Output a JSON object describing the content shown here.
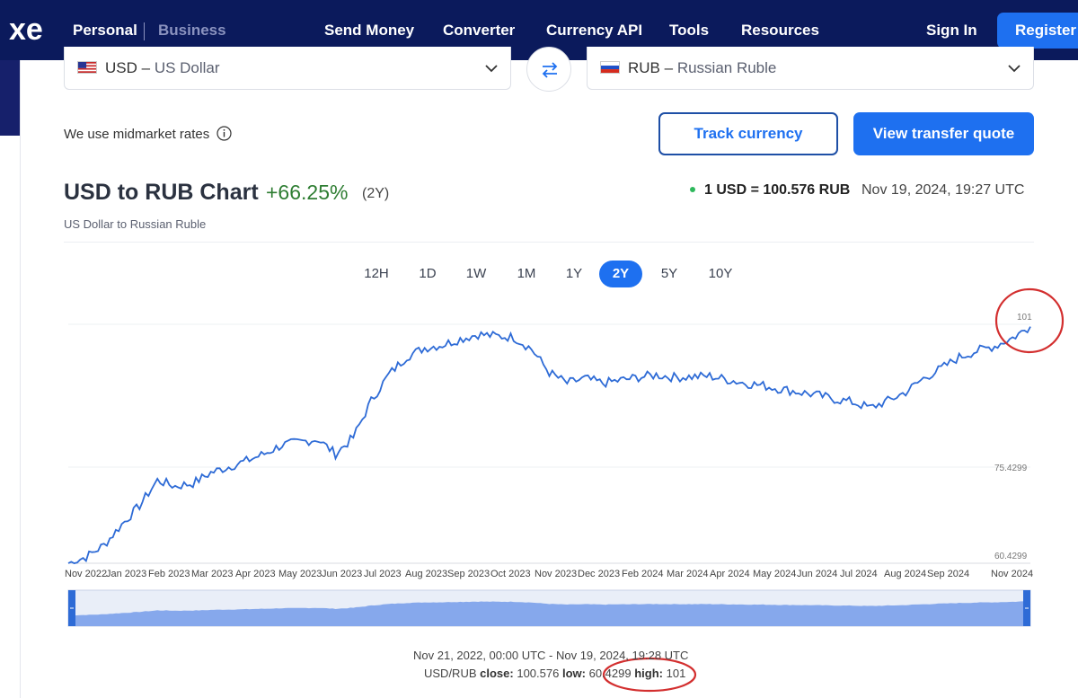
{
  "nav": {
    "personal": "Personal",
    "business": "Business",
    "links": [
      "Send Money",
      "Converter",
      "Currency API",
      "Tools",
      "Resources"
    ],
    "sign_in": "Sign In",
    "register": "Register"
  },
  "from_currency": {
    "code": "USD",
    "name": "US Dollar"
  },
  "to_currency": {
    "code": "RUB",
    "name": "Russian Ruble"
  },
  "midmarket_text": "We use midmarket rates",
  "track_button": "Track currency",
  "quote_button": "View transfer quote",
  "chart_header": {
    "title": "USD to RUB Chart",
    "change": "+66.25%",
    "period": "(2Y)",
    "subtitle": "US Dollar to Russian Ruble",
    "rate": "1 USD = 100.576 RUB",
    "timestamp": "Nov 19, 2024, 19:27 UTC"
  },
  "ranges": [
    {
      "label": "12H",
      "active": false
    },
    {
      "label": "1D",
      "active": false
    },
    {
      "label": "1W",
      "active": false
    },
    {
      "label": "1M",
      "active": false
    },
    {
      "label": "1Y",
      "active": false
    },
    {
      "label": "2Y",
      "active": true
    },
    {
      "label": "5Y",
      "active": false
    },
    {
      "label": "10Y",
      "active": false
    }
  ],
  "chart_data": {
    "type": "line",
    "title": "USD to RUB Chart",
    "x_tick_labels": [
      "Nov 2022",
      "Jan 2023",
      "Feb 2023",
      "Mar 2023",
      "Apr 2023",
      "May 2023",
      "Jun 2023",
      "Jul 2023",
      "Aug 2023",
      "Sep 2023",
      "Oct 2023",
      "Nov 2023",
      "Dec 2023",
      "Feb 2024",
      "Mar 2024",
      "Apr 2024",
      "May 2024",
      "Jun 2024",
      "Jul 2024",
      "Aug 2024",
      "Sep 2024",
      "Nov 2024"
    ],
    "y_tick_labels": [
      "60.4299",
      "75.4299",
      "101"
    ],
    "ylim": [
      60.4299,
      101
    ],
    "series": [
      {
        "values": [
          60.4,
          61.5,
          63.5,
          67.0,
          70.2,
          74.5,
          73.5,
          74.0,
          75.8,
          76.8,
          77.8,
          79.0,
          80.5,
          81.0,
          81.5,
          79.0,
          81.8,
          88.0,
          92.5,
          95.5,
          97.0,
          97.5,
          98.5,
          99.3,
          99.0,
          98.8,
          96.8,
          92.8,
          91.0,
          91.8,
          91.0,
          91.5,
          92.0,
          92.4,
          92.0,
          92.1,
          92.2,
          91.6,
          91.0,
          90.6,
          90.0,
          89.5,
          89.0,
          88.3,
          87.8,
          86.8,
          88.0,
          89.5,
          91.8,
          93.5,
          95.4,
          96.5,
          97.3,
          98.7,
          100.6
        ]
      }
    ],
    "close": "100.576",
    "low": "60.4299",
    "high": "101",
    "date_range": "Nov 21, 2022, 00:00 UTC - Nov 19, 2024, 19:28 UTC",
    "pair": "USD/RUB"
  },
  "footer": {
    "date_range": "Nov 21, 2022, 00:00 UTC - Nov 19, 2024, 19:28 UTC",
    "pair": "USD/RUB",
    "close_label": "close:",
    "close": "100.576",
    "low_label": "low:",
    "low": "60.4299",
    "high_label": "high:",
    "high": "101"
  },
  "colors": {
    "nav_bg": "#0b1a5c",
    "accent": "#1e70f0",
    "line": "#2e6bd6",
    "annotation": "#d32f2f",
    "positive": "#2e7d32"
  }
}
